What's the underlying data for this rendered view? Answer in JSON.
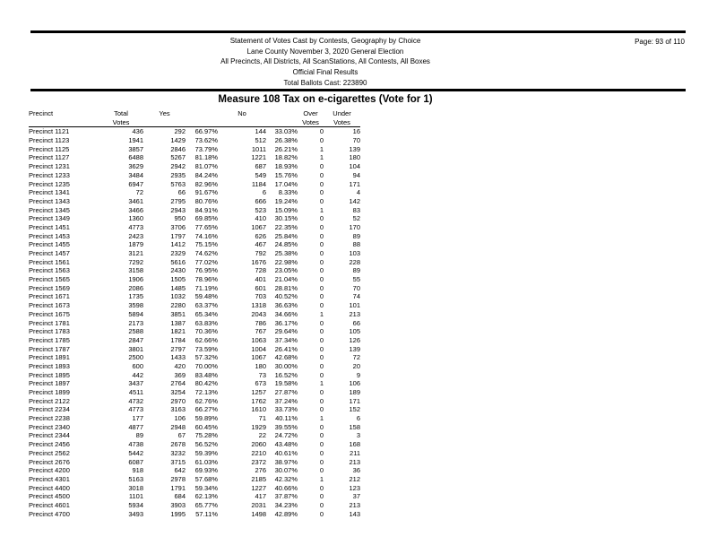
{
  "colors": {
    "text": "#000000",
    "rule": "#000000",
    "background": "#ffffff"
  },
  "header": {
    "lines": [
      "Statement of Votes Cast by Contests, Geography by Choice",
      "Lane County November 3, 2020 General Election",
      "All Precincts, All Districts, All ScanStations, All Contests, All Boxes",
      "Official Final Results",
      "Total Ballots Cast: 223890"
    ],
    "page_label": "Page: 93 of 110"
  },
  "contest": {
    "title": "Measure 108 Tax on e-cigarettes (Vote for 1)"
  },
  "table": {
    "col_headers": {
      "precinct": "Precinct",
      "total": [
        "Total",
        "Votes"
      ],
      "yes": "Yes",
      "no": "No",
      "over": [
        "Over",
        "Votes"
      ],
      "under": [
        "Under",
        "Votes"
      ]
    },
    "rows": [
      [
        "Precinct 1121",
        "436",
        "292",
        "66.97%",
        "144",
        "33.03%",
        "0",
        "16"
      ],
      [
        "Precinct 1123",
        "1941",
        "1429",
        "73.62%",
        "512",
        "26.38%",
        "0",
        "70"
      ],
      [
        "Precinct 1125",
        "3857",
        "2846",
        "73.79%",
        "1011",
        "26.21%",
        "1",
        "139"
      ],
      [
        "Precinct 1127",
        "6488",
        "5267",
        "81.18%",
        "1221",
        "18.82%",
        "1",
        "180"
      ],
      [
        "Precinct 1231",
        "3629",
        "2942",
        "81.07%",
        "687",
        "18.93%",
        "0",
        "104"
      ],
      [
        "Precinct 1233",
        "3484",
        "2935",
        "84.24%",
        "549",
        "15.76%",
        "0",
        "94"
      ],
      [
        "Precinct 1235",
        "6947",
        "5763",
        "82.96%",
        "1184",
        "17.04%",
        "0",
        "171"
      ],
      [
        "Precinct 1341",
        "72",
        "66",
        "91.67%",
        "6",
        "8.33%",
        "0",
        "4"
      ],
      [
        "Precinct 1343",
        "3461",
        "2795",
        "80.76%",
        "666",
        "19.24%",
        "0",
        "142"
      ],
      [
        "Precinct 1345",
        "3466",
        "2943",
        "84.91%",
        "523",
        "15.09%",
        "1",
        "83"
      ],
      [
        "Precinct 1349",
        "1360",
        "950",
        "69.85%",
        "410",
        "30.15%",
        "0",
        "52"
      ],
      [
        "Precinct 1451",
        "4773",
        "3706",
        "77.65%",
        "1067",
        "22.35%",
        "0",
        "170"
      ],
      [
        "Precinct 1453",
        "2423",
        "1797",
        "74.16%",
        "626",
        "25.84%",
        "0",
        "89"
      ],
      [
        "Precinct 1455",
        "1879",
        "1412",
        "75.15%",
        "467",
        "24.85%",
        "0",
        "88"
      ],
      [
        "Precinct 1457",
        "3121",
        "2329",
        "74.62%",
        "792",
        "25.38%",
        "0",
        "103"
      ],
      [
        "Precinct 1561",
        "7292",
        "5616",
        "77.02%",
        "1676",
        "22.98%",
        "0",
        "228"
      ],
      [
        "Precinct 1563",
        "3158",
        "2430",
        "76.95%",
        "728",
        "23.05%",
        "0",
        "89"
      ],
      [
        "Precinct 1565",
        "1906",
        "1505",
        "78.96%",
        "401",
        "21.04%",
        "0",
        "55"
      ],
      [
        "Precinct 1569",
        "2086",
        "1485",
        "71.19%",
        "601",
        "28.81%",
        "0",
        "70"
      ],
      [
        "Precinct 1671",
        "1735",
        "1032",
        "59.48%",
        "703",
        "40.52%",
        "0",
        "74"
      ],
      [
        "Precinct 1673",
        "3598",
        "2280",
        "63.37%",
        "1318",
        "36.63%",
        "0",
        "101"
      ],
      [
        "Precinct 1675",
        "5894",
        "3851",
        "65.34%",
        "2043",
        "34.66%",
        "1",
        "213"
      ],
      [
        "Precinct 1781",
        "2173",
        "1387",
        "63.83%",
        "786",
        "36.17%",
        "0",
        "66"
      ],
      [
        "Precinct 1783",
        "2588",
        "1821",
        "70.36%",
        "767",
        "29.64%",
        "0",
        "105"
      ],
      [
        "Precinct 1785",
        "2847",
        "1784",
        "62.66%",
        "1063",
        "37.34%",
        "0",
        "126"
      ],
      [
        "Precinct 1787",
        "3801",
        "2797",
        "73.59%",
        "1004",
        "26.41%",
        "0",
        "139"
      ],
      [
        "Precinct 1891",
        "2500",
        "1433",
        "57.32%",
        "1067",
        "42.68%",
        "0",
        "72"
      ],
      [
        "Precinct 1893",
        "600",
        "420",
        "70.00%",
        "180",
        "30.00%",
        "0",
        "20"
      ],
      [
        "Precinct 1895",
        "442",
        "369",
        "83.48%",
        "73",
        "16.52%",
        "0",
        "9"
      ],
      [
        "Precinct 1897",
        "3437",
        "2764",
        "80.42%",
        "673",
        "19.58%",
        "1",
        "106"
      ],
      [
        "Precinct 1899",
        "4511",
        "3254",
        "72.13%",
        "1257",
        "27.87%",
        "0",
        "189"
      ],
      [
        "Precinct 2122",
        "4732",
        "2970",
        "62.76%",
        "1762",
        "37.24%",
        "0",
        "171"
      ],
      [
        "Precinct 2234",
        "4773",
        "3163",
        "66.27%",
        "1610",
        "33.73%",
        "0",
        "152"
      ],
      [
        "Precinct 2238",
        "177",
        "106",
        "59.89%",
        "71",
        "40.11%",
        "1",
        "6"
      ],
      [
        "Precinct 2340",
        "4877",
        "2948",
        "60.45%",
        "1929",
        "39.55%",
        "0",
        "158"
      ],
      [
        "Precinct 2344",
        "89",
        "67",
        "75.28%",
        "22",
        "24.72%",
        "0",
        "3"
      ],
      [
        "Precinct 2456",
        "4738",
        "2678",
        "56.52%",
        "2060",
        "43.48%",
        "0",
        "168"
      ],
      [
        "Precinct 2562",
        "5442",
        "3232",
        "59.39%",
        "2210",
        "40.61%",
        "0",
        "211"
      ],
      [
        "Precinct 2676",
        "6087",
        "3715",
        "61.03%",
        "2372",
        "38.97%",
        "0",
        "213"
      ],
      [
        "Precinct 4200",
        "918",
        "642",
        "69.93%",
        "276",
        "30.07%",
        "0",
        "36"
      ],
      [
        "Precinct 4301",
        "5163",
        "2978",
        "57.68%",
        "2185",
        "42.32%",
        "1",
        "212"
      ],
      [
        "Precinct 4400",
        "3018",
        "1791",
        "59.34%",
        "1227",
        "40.66%",
        "0",
        "123"
      ],
      [
        "Precinct 4500",
        "1101",
        "684",
        "62.13%",
        "417",
        "37.87%",
        "0",
        "37"
      ],
      [
        "Precinct 4601",
        "5934",
        "3903",
        "65.77%",
        "2031",
        "34.23%",
        "0",
        "213"
      ],
      [
        "Precinct 4700",
        "3493",
        "1995",
        "57.11%",
        "1498",
        "42.89%",
        "0",
        "143"
      ]
    ]
  }
}
